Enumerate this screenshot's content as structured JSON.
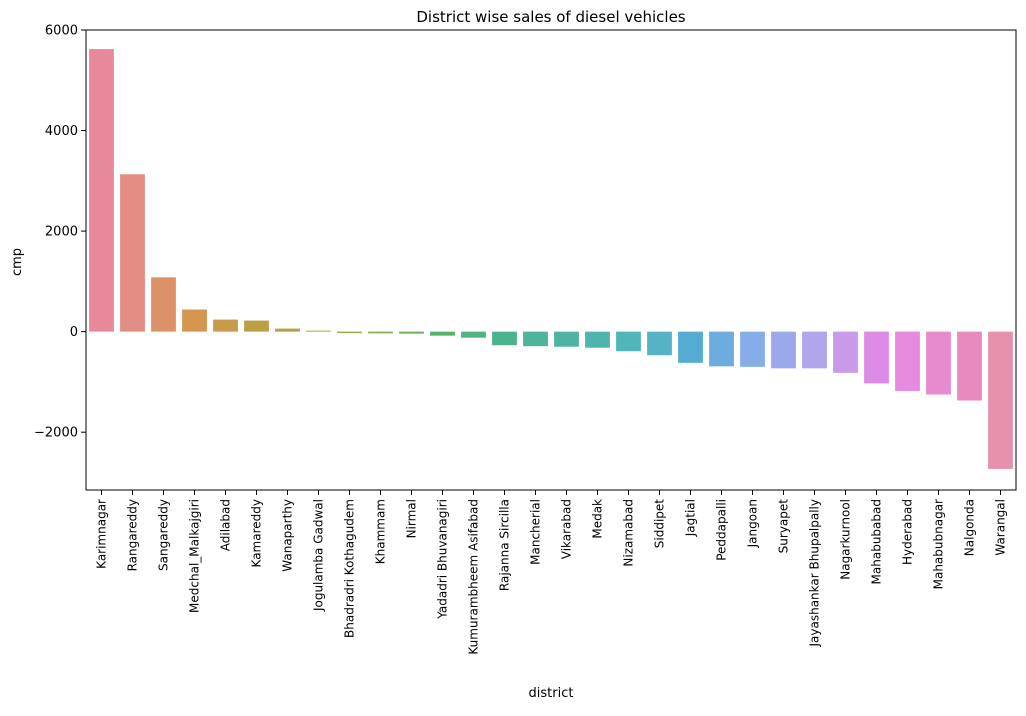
{
  "chart_data": {
    "type": "bar",
    "title": "District wise sales of diesel vehicles",
    "xlabel": "district",
    "ylabel": "cmp",
    "ylim": [
      -3150,
      6000
    ],
    "yticks": [
      -2000,
      0,
      2000,
      4000,
      6000
    ],
    "ytick_labels": [
      "−2000",
      "0",
      "2000",
      "4000",
      "6000"
    ],
    "grid": false,
    "legend": "none",
    "categories": [
      "Karimnagar",
      "Rangareddy",
      "Sangareddy",
      "Medchal_Malkajgiri",
      "Adilabad",
      "Kamareddy",
      "Wanaparthy",
      "Jogulamba Gadwal",
      "Bhadradri Kothagudem",
      "Khammam",
      "Nirmal",
      "Yadadri Bhuvanagiri",
      "Kumurambheem Asifabad",
      "Rajanna Sircilla",
      "Mancherial",
      "Vikarabad",
      "Medak",
      "Nizamabad",
      "Siddipet",
      "Jagtial",
      "Peddapalli",
      "Jangoan",
      "Suryapet",
      "Jayashankar Bhupalpally",
      "Nagarkurnool",
      "Mahabubabad",
      "Hyderabad",
      "Mahabubnagar",
      "Nalgonda",
      "Warangal"
    ],
    "values": [
      5620,
      3130,
      1080,
      440,
      240,
      220,
      60,
      20,
      -30,
      -35,
      -40,
      -80,
      -120,
      -270,
      -290,
      -300,
      -320,
      -390,
      -470,
      -620,
      -690,
      -700,
      -730,
      -730,
      -820,
      -1030,
      -1180,
      -1250,
      -1370,
      -2730
    ],
    "colors": [
      "#e8889b",
      "#e38c84",
      "#dd9168",
      "#d6954f",
      "#c89a4a",
      "#bb9f47",
      "#aca346",
      "#a3a846",
      "#96aa4c",
      "#8aad53",
      "#6ab15b",
      "#55b468",
      "#4fb27f",
      "#4db38e",
      "#4eb49a",
      "#4fb3a4",
      "#50b4ae",
      "#52b5b9",
      "#55b3c5",
      "#55acd3",
      "#6dacdf",
      "#85ade8",
      "#9da8ec",
      "#b1a5ec",
      "#c89ae9",
      "#dc8ce6",
      "#e58adc",
      "#e78ace",
      "#e78bbf",
      "#e891ad"
    ]
  }
}
